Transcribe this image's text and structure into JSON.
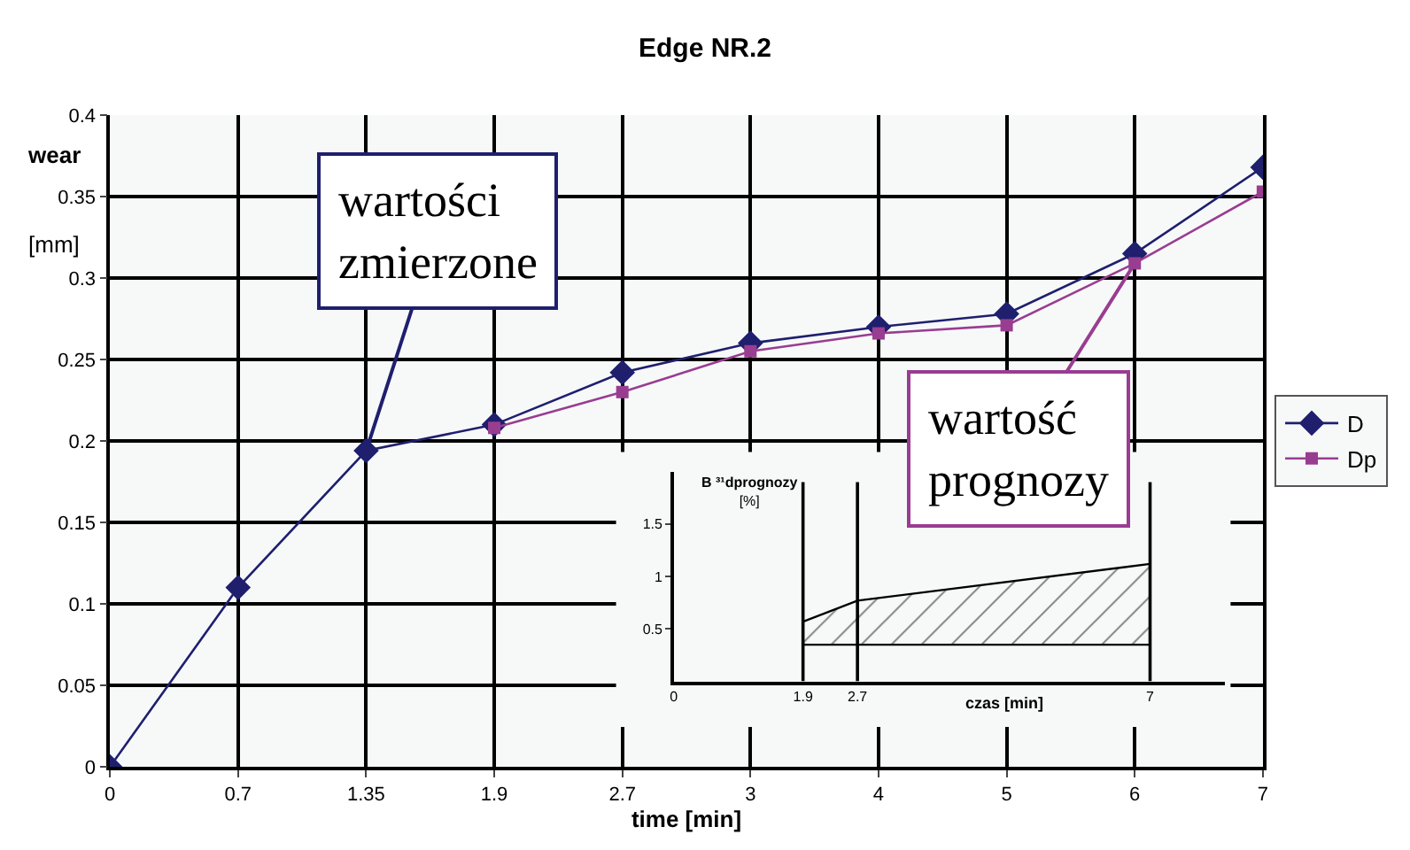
{
  "chart_data": [
    {
      "type": "line",
      "title": "Edge NR.2",
      "xlabel": "time [min]",
      "ylabel": "wear [mm]",
      "categories": [
        "0",
        "0.7",
        "1.35",
        "1.9",
        "2.7",
        "3",
        "4",
        "5",
        "6",
        "7"
      ],
      "series": [
        {
          "name": "D",
          "color": "#1f1f6e",
          "marker": "diamond",
          "values": [
            0,
            0.11,
            0.194,
            0.21,
            0.242,
            0.26,
            0.27,
            0.278,
            0.315,
            0.368
          ]
        },
        {
          "name": "Dp",
          "color": "#993d91",
          "marker": "square",
          "values": [
            null,
            null,
            null,
            0.208,
            0.23,
            0.255,
            0.266,
            0.271,
            0.309,
            0.353
          ]
        }
      ],
      "ylim": [
        0,
        0.4
      ],
      "yticks": [
        0,
        0.05,
        0.1,
        0.15,
        0.2,
        0.25,
        0.3,
        0.35,
        0.4
      ],
      "grid": true,
      "legend": "right",
      "annotations": [
        {
          "text": "wartości zmierzone",
          "x": "1.35",
          "y": 0.194
        },
        {
          "text": "wartość prognozy",
          "x": "6",
          "y": 0.309
        }
      ]
    },
    {
      "type": "area",
      "xlabel": "czas [min]",
      "ylabel": "B ³¹dprognozy [%]",
      "series": [
        {
          "type": "line",
          "color": "#000000",
          "x": [
            1.9,
            2.7,
            7
          ],
          "values": [
            0.35,
            0.35,
            0.35
          ]
        },
        {
          "color": "#000000",
          "x": [
            1.9,
            2.7,
            7
          ],
          "values": [
            0.57,
            0.77,
            1.12
          ]
        }
      ],
      "xlim": [
        0,
        8.1
      ],
      "xticks": [
        0,
        1.9,
        2.7,
        7
      ],
      "ylim": [
        0,
        2
      ],
      "yticks": [
        0.5,
        1,
        1.5
      ],
      "grid": false,
      "ref_lines": [
        {
          "axis": "x",
          "value": 1.9
        },
        {
          "axis": "x",
          "value": 2.7
        },
        {
          "axis": "x",
          "value": 7
        }
      ]
    }
  ]
}
